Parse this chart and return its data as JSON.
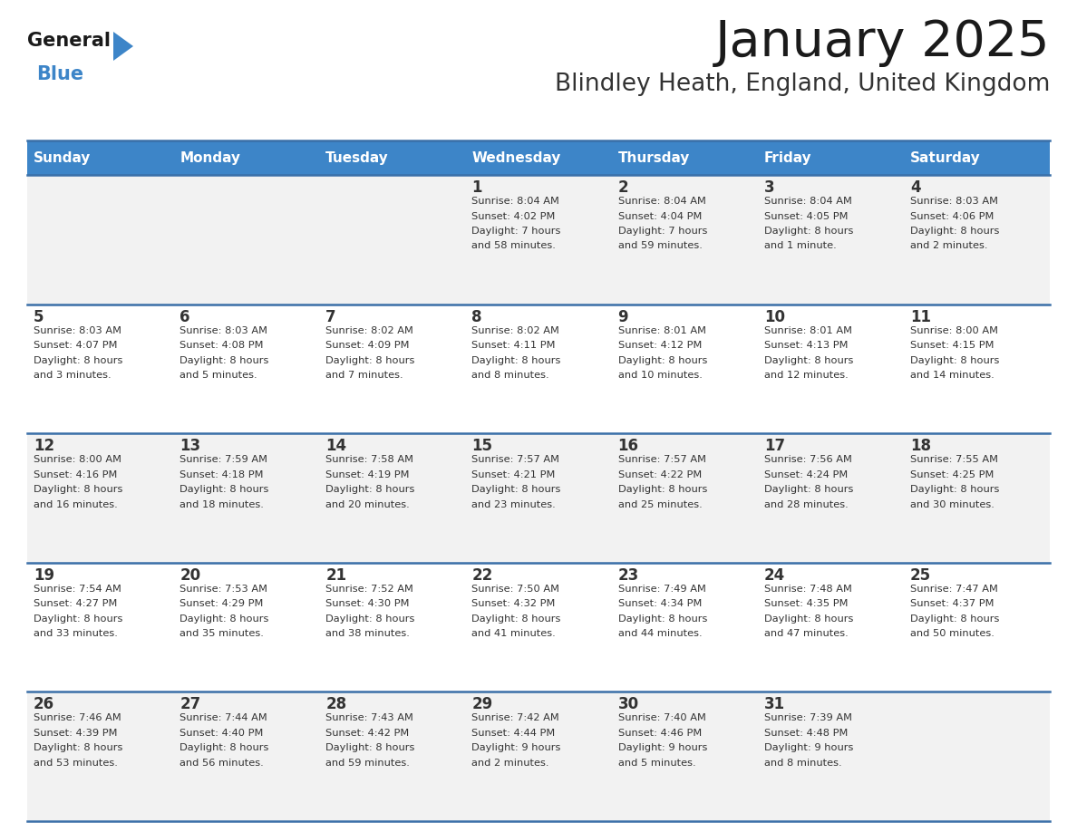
{
  "title": "January 2025",
  "subtitle": "Blindley Heath, England, United Kingdom",
  "days_of_week": [
    "Sunday",
    "Monday",
    "Tuesday",
    "Wednesday",
    "Thursday",
    "Friday",
    "Saturday"
  ],
  "header_bg": "#3d85c8",
  "header_text": "#ffffff",
  "row_bg_even": "#f2f2f2",
  "row_bg_odd": "#ffffff",
  "separator_color": "#3a6fa8",
  "day_num_color": "#333333",
  "cell_text_color": "#333333",
  "title_color": "#1a1a1a",
  "subtitle_color": "#333333",
  "logo_general_color": "#1a1a1a",
  "logo_blue_color": "#3d85c8",
  "calendar_data": [
    [
      {
        "day": "",
        "sunrise": "",
        "sunset": "",
        "daylight": ""
      },
      {
        "day": "",
        "sunrise": "",
        "sunset": "",
        "daylight": ""
      },
      {
        "day": "",
        "sunrise": "",
        "sunset": "",
        "daylight": ""
      },
      {
        "day": "1",
        "sunrise": "8:04 AM",
        "sunset": "4:02 PM",
        "daylight": "7 hours\nand 58 minutes."
      },
      {
        "day": "2",
        "sunrise": "8:04 AM",
        "sunset": "4:04 PM",
        "daylight": "7 hours\nand 59 minutes."
      },
      {
        "day": "3",
        "sunrise": "8:04 AM",
        "sunset": "4:05 PM",
        "daylight": "8 hours\nand 1 minute."
      },
      {
        "day": "4",
        "sunrise": "8:03 AM",
        "sunset": "4:06 PM",
        "daylight": "8 hours\nand 2 minutes."
      }
    ],
    [
      {
        "day": "5",
        "sunrise": "8:03 AM",
        "sunset": "4:07 PM",
        "daylight": "8 hours\nand 3 minutes."
      },
      {
        "day": "6",
        "sunrise": "8:03 AM",
        "sunset": "4:08 PM",
        "daylight": "8 hours\nand 5 minutes."
      },
      {
        "day": "7",
        "sunrise": "8:02 AM",
        "sunset": "4:09 PM",
        "daylight": "8 hours\nand 7 minutes."
      },
      {
        "day": "8",
        "sunrise": "8:02 AM",
        "sunset": "4:11 PM",
        "daylight": "8 hours\nand 8 minutes."
      },
      {
        "day": "9",
        "sunrise": "8:01 AM",
        "sunset": "4:12 PM",
        "daylight": "8 hours\nand 10 minutes."
      },
      {
        "day": "10",
        "sunrise": "8:01 AM",
        "sunset": "4:13 PM",
        "daylight": "8 hours\nand 12 minutes."
      },
      {
        "day": "11",
        "sunrise": "8:00 AM",
        "sunset": "4:15 PM",
        "daylight": "8 hours\nand 14 minutes."
      }
    ],
    [
      {
        "day": "12",
        "sunrise": "8:00 AM",
        "sunset": "4:16 PM",
        "daylight": "8 hours\nand 16 minutes."
      },
      {
        "day": "13",
        "sunrise": "7:59 AM",
        "sunset": "4:18 PM",
        "daylight": "8 hours\nand 18 minutes."
      },
      {
        "day": "14",
        "sunrise": "7:58 AM",
        "sunset": "4:19 PM",
        "daylight": "8 hours\nand 20 minutes."
      },
      {
        "day": "15",
        "sunrise": "7:57 AM",
        "sunset": "4:21 PM",
        "daylight": "8 hours\nand 23 minutes."
      },
      {
        "day": "16",
        "sunrise": "7:57 AM",
        "sunset": "4:22 PM",
        "daylight": "8 hours\nand 25 minutes."
      },
      {
        "day": "17",
        "sunrise": "7:56 AM",
        "sunset": "4:24 PM",
        "daylight": "8 hours\nand 28 minutes."
      },
      {
        "day": "18",
        "sunrise": "7:55 AM",
        "sunset": "4:25 PM",
        "daylight": "8 hours\nand 30 minutes."
      }
    ],
    [
      {
        "day": "19",
        "sunrise": "7:54 AM",
        "sunset": "4:27 PM",
        "daylight": "8 hours\nand 33 minutes."
      },
      {
        "day": "20",
        "sunrise": "7:53 AM",
        "sunset": "4:29 PM",
        "daylight": "8 hours\nand 35 minutes."
      },
      {
        "day": "21",
        "sunrise": "7:52 AM",
        "sunset": "4:30 PM",
        "daylight": "8 hours\nand 38 minutes."
      },
      {
        "day": "22",
        "sunrise": "7:50 AM",
        "sunset": "4:32 PM",
        "daylight": "8 hours\nand 41 minutes."
      },
      {
        "day": "23",
        "sunrise": "7:49 AM",
        "sunset": "4:34 PM",
        "daylight": "8 hours\nand 44 minutes."
      },
      {
        "day": "24",
        "sunrise": "7:48 AM",
        "sunset": "4:35 PM",
        "daylight": "8 hours\nand 47 minutes."
      },
      {
        "day": "25",
        "sunrise": "7:47 AM",
        "sunset": "4:37 PM",
        "daylight": "8 hours\nand 50 minutes."
      }
    ],
    [
      {
        "day": "26",
        "sunrise": "7:46 AM",
        "sunset": "4:39 PM",
        "daylight": "8 hours\nand 53 minutes."
      },
      {
        "day": "27",
        "sunrise": "7:44 AM",
        "sunset": "4:40 PM",
        "daylight": "8 hours\nand 56 minutes."
      },
      {
        "day": "28",
        "sunrise": "7:43 AM",
        "sunset": "4:42 PM",
        "daylight": "8 hours\nand 59 minutes."
      },
      {
        "day": "29",
        "sunrise": "7:42 AM",
        "sunset": "4:44 PM",
        "daylight": "9 hours\nand 2 minutes."
      },
      {
        "day": "30",
        "sunrise": "7:40 AM",
        "sunset": "4:46 PM",
        "daylight": "9 hours\nand 5 minutes."
      },
      {
        "day": "31",
        "sunrise": "7:39 AM",
        "sunset": "4:48 PM",
        "daylight": "9 hours\nand 8 minutes."
      },
      {
        "day": "",
        "sunrise": "",
        "sunset": "",
        "daylight": ""
      }
    ]
  ]
}
